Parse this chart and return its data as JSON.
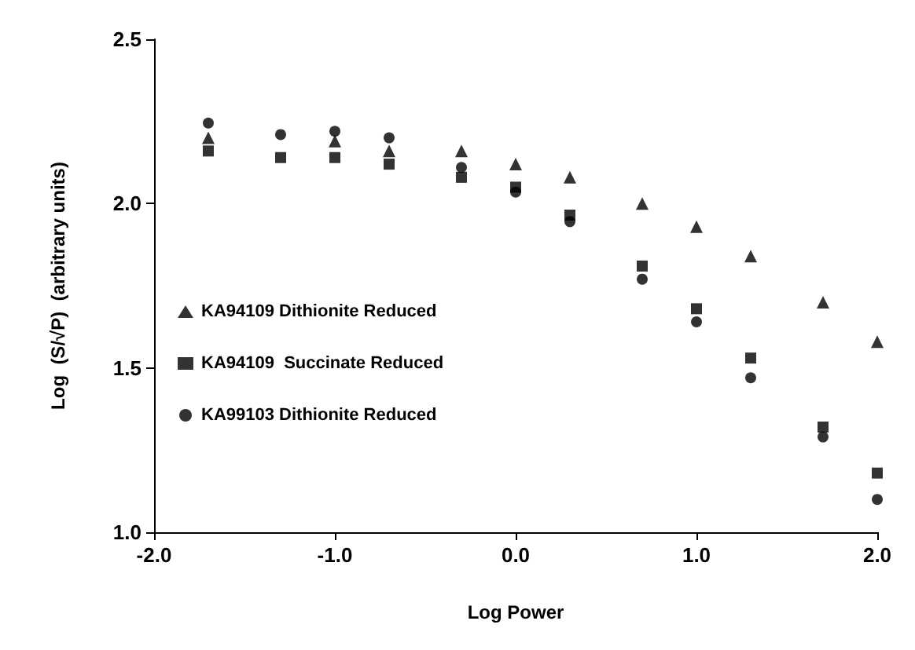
{
  "chart_data": {
    "type": "scatter",
    "xlabel": "Log Power",
    "ylabel": "Log  (S/√P)  (arbitrary units)",
    "x": [
      -1.7,
      -1.3,
      -1.0,
      -0.7,
      -0.3,
      0.0,
      0.3,
      0.7,
      1.0,
      1.3,
      1.7,
      2.0
    ],
    "series": [
      {
        "name": "KA94109 Dithionite Reduced",
        "color": "#000000",
        "marker": "triangle",
        "values": [
          2.2,
          null,
          2.19,
          2.16,
          2.16,
          2.12,
          2.08,
          2.0,
          1.93,
          1.84,
          1.7,
          1.58
        ]
      },
      {
        "name": "KA94109  Succinate Reduced",
        "color": "#000000",
        "marker": "square",
        "values": [
          2.16,
          2.14,
          2.14,
          2.12,
          2.08,
          2.05,
          1.965,
          1.81,
          1.68,
          1.53,
          1.32,
          1.18
        ]
      },
      {
        "name": "KA99103 Dithionite Reduced",
        "color": "#000000",
        "marker": "circle",
        "values": [
          2.245,
          2.21,
          2.22,
          2.2,
          2.11,
          2.035,
          1.945,
          1.77,
          1.64,
          1.47,
          1.29,
          1.1
        ]
      }
    ],
    "xlim": [
      -2.0,
      2.0
    ],
    "xticks": [
      {
        "value": -2,
        "label": "-2.0"
      },
      {
        "value": -1,
        "label": "-1.0"
      },
      {
        "value": 0,
        "label": "0.0"
      },
      {
        "value": 1,
        "label": "1.0"
      },
      {
        "value": 2,
        "label": "2.0"
      }
    ],
    "ylim": [
      1.0,
      2.5
    ],
    "yticks": [
      {
        "value": 1,
        "label": "1.0"
      },
      {
        "value": 1.5,
        "label": "1.5"
      },
      {
        "value": 2,
        "label": "2.0"
      },
      {
        "value": 2.5,
        "label": "2.5"
      }
    ],
    "grid": false,
    "legend": "left"
  }
}
